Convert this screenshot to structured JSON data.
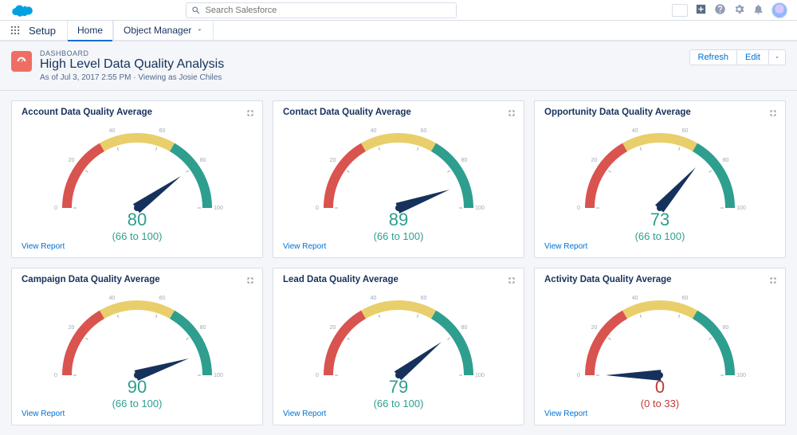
{
  "header": {
    "search_placeholder": "Search Salesforce"
  },
  "context": {
    "app_name": "Setup",
    "tab_home": "Home",
    "tab_object_manager": "Object Manager"
  },
  "page": {
    "eyebrow": "DASHBOARD",
    "title": "High Level Data Quality Analysis",
    "meta": "As of Jul 3, 2017 2:55 PM · Viewing as Josie Chiles",
    "refresh_label": "Refresh",
    "edit_label": "Edit"
  },
  "gauge_style": {
    "arc_red": "#d9534f",
    "arc_yellow": "#e9cf6b",
    "arc_green": "#2e9e8f",
    "needle": "#16325c",
    "good_text": "#2e9e8f",
    "bad_text": "#c23934",
    "arc_stroke_width": 12,
    "red_deg": [
      180,
      240
    ],
    "yellow_deg": [
      240,
      300
    ],
    "green_deg": [
      300,
      360
    ],
    "ticks": [
      "0",
      "20",
      "40",
      "60",
      "80",
      "100"
    ]
  },
  "cards": [
    {
      "title": "Account Data Quality Average",
      "value": 80,
      "range": "(66 to 100)",
      "status": "good"
    },
    {
      "title": "Contact Data Quality Average",
      "value": 89,
      "range": "(66 to 100)",
      "status": "good"
    },
    {
      "title": "Opportunity Data Quality Average",
      "value": 73,
      "range": "(66 to 100)",
      "status": "good"
    },
    {
      "title": "Campaign Data Quality Average",
      "value": 90,
      "range": "(66 to 100)",
      "status": "good"
    },
    {
      "title": "Lead Data Quality Average",
      "value": 79,
      "range": "(66 to 100)",
      "status": "good"
    },
    {
      "title": "Activity Data Quality Average",
      "value": 0,
      "range": "(0 to 33)",
      "status": "bad"
    }
  ],
  "labels": {
    "view_report": "View Report"
  }
}
